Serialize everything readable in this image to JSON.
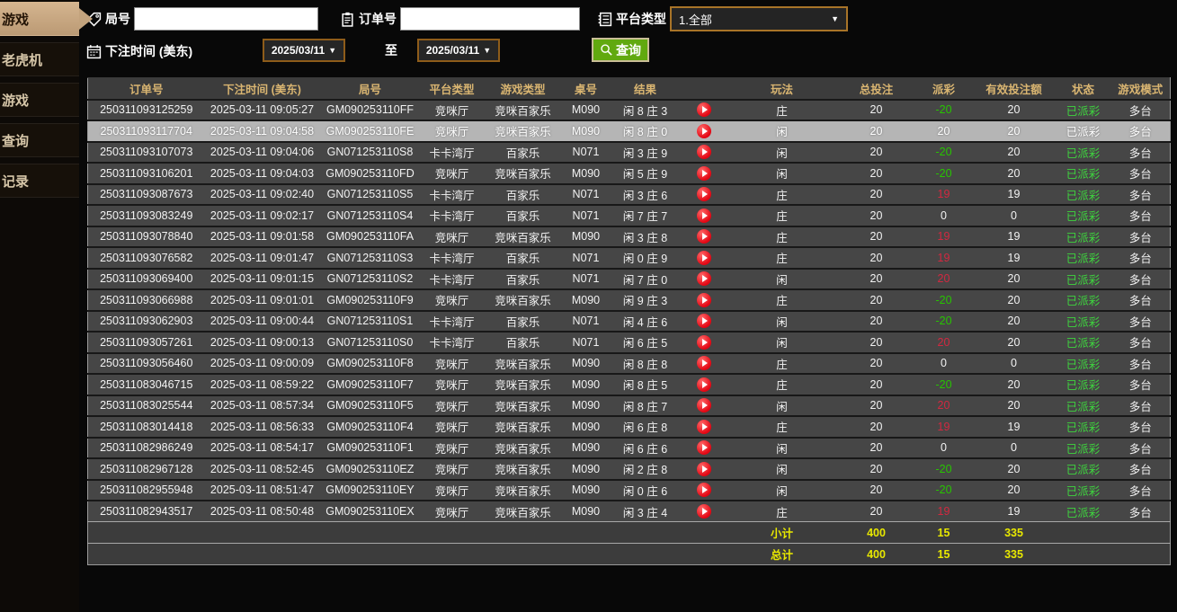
{
  "sidebar": {
    "items": [
      {
        "label": "游戏",
        "active": true
      },
      {
        "label": "老虎机",
        "active": false
      },
      {
        "label": "游戏",
        "active": false
      },
      {
        "label": "查询",
        "active": false
      },
      {
        "label": "记录",
        "active": false
      }
    ]
  },
  "filters": {
    "round_label": "局号",
    "order_label": "订单号",
    "platform_label": "平台类型",
    "platform_value": "1.全部",
    "bet_time_label": "下注时间 (美东)",
    "date_from": "2025/03/11",
    "to_label": "至",
    "date_to": "2025/03/11",
    "query_label": "查询",
    "round_value": "",
    "order_value": ""
  },
  "table": {
    "columns": [
      "订单号",
      "下注时间 (美东)",
      "局号",
      "平台类型",
      "游戏类型",
      "桌号",
      "结果",
      "",
      "玩法",
      "总投注",
      "派彩",
      "有效投注额",
      "状态",
      "游戏模式"
    ],
    "rows": [
      {
        "order": "250311093125259",
        "time": "2025-03-11 09:05:27",
        "round": "GM090253110FF",
        "platform": "竞咪厅",
        "game_type": "竞咪百家乐",
        "table_no": "M090",
        "result": "闲 8 庄 3",
        "bet": "庄",
        "total": "20",
        "payout": "-20",
        "payout_color": "neg",
        "valid": "20",
        "status": "已派彩",
        "mode": "多台",
        "selected": false
      },
      {
        "order": "250311093117704",
        "time": "2025-03-11 09:04:58",
        "round": "GM090253110FE",
        "platform": "竞咪厅",
        "game_type": "竞咪百家乐",
        "table_no": "M090",
        "result": "闲 8 庄 0",
        "bet": "闲",
        "total": "20",
        "payout": "20",
        "payout_color": "pos",
        "valid": "20",
        "status": "已派彩",
        "mode": "多台",
        "selected": true
      },
      {
        "order": "250311093107073",
        "time": "2025-03-11 09:04:06",
        "round": "GN071253110S8",
        "platform": "卡卡湾厅",
        "game_type": "百家乐",
        "table_no": "N071",
        "result": "闲 3 庄 9",
        "bet": "闲",
        "total": "20",
        "payout": "-20",
        "payout_color": "neg",
        "valid": "20",
        "status": "已派彩",
        "mode": "多台",
        "selected": false
      },
      {
        "order": "250311093106201",
        "time": "2025-03-11 09:04:03",
        "round": "GM090253110FD",
        "platform": "竞咪厅",
        "game_type": "竞咪百家乐",
        "table_no": "M090",
        "result": "闲 5 庄 9",
        "bet": "闲",
        "total": "20",
        "payout": "-20",
        "payout_color": "neg",
        "valid": "20",
        "status": "已派彩",
        "mode": "多台",
        "selected": false
      },
      {
        "order": "250311093087673",
        "time": "2025-03-11 09:02:40",
        "round": "GN071253110S5",
        "platform": "卡卡湾厅",
        "game_type": "百家乐",
        "table_no": "N071",
        "result": "闲 3 庄 6",
        "bet": "庄",
        "total": "20",
        "payout": "19",
        "payout_color": "pos",
        "valid": "19",
        "status": "已派彩",
        "mode": "多台",
        "selected": false
      },
      {
        "order": "250311093083249",
        "time": "2025-03-11 09:02:17",
        "round": "GN071253110S4",
        "platform": "卡卡湾厅",
        "game_type": "百家乐",
        "table_no": "N071",
        "result": "闲 7 庄 7",
        "bet": "庄",
        "total": "20",
        "payout": "0",
        "payout_color": "zero",
        "valid": "0",
        "status": "已派彩",
        "mode": "多台",
        "selected": false
      },
      {
        "order": "250311093078840",
        "time": "2025-03-11 09:01:58",
        "round": "GM090253110FA",
        "platform": "竞咪厅",
        "game_type": "竞咪百家乐",
        "table_no": "M090",
        "result": "闲 3 庄 8",
        "bet": "庄",
        "total": "20",
        "payout": "19",
        "payout_color": "pos",
        "valid": "19",
        "status": "已派彩",
        "mode": "多台",
        "selected": false
      },
      {
        "order": "250311093076582",
        "time": "2025-03-11 09:01:47",
        "round": "GN071253110S3",
        "platform": "卡卡湾厅",
        "game_type": "百家乐",
        "table_no": "N071",
        "result": "闲 0 庄 9",
        "bet": "庄",
        "total": "20",
        "payout": "19",
        "payout_color": "pos",
        "valid": "19",
        "status": "已派彩",
        "mode": "多台",
        "selected": false
      },
      {
        "order": "250311093069400",
        "time": "2025-03-11 09:01:15",
        "round": "GN071253110S2",
        "platform": "卡卡湾厅",
        "game_type": "百家乐",
        "table_no": "N071",
        "result": "闲 7 庄 0",
        "bet": "闲",
        "total": "20",
        "payout": "20",
        "payout_color": "pos",
        "valid": "20",
        "status": "已派彩",
        "mode": "多台",
        "selected": false
      },
      {
        "order": "250311093066988",
        "time": "2025-03-11 09:01:01",
        "round": "GM090253110F9",
        "platform": "竞咪厅",
        "game_type": "竞咪百家乐",
        "table_no": "M090",
        "result": "闲 9 庄 3",
        "bet": "庄",
        "total": "20",
        "payout": "-20",
        "payout_color": "neg",
        "valid": "20",
        "status": "已派彩",
        "mode": "多台",
        "selected": false
      },
      {
        "order": "250311093062903",
        "time": "2025-03-11 09:00:44",
        "round": "GN071253110S1",
        "platform": "卡卡湾厅",
        "game_type": "百家乐",
        "table_no": "N071",
        "result": "闲 4 庄 6",
        "bet": "闲",
        "total": "20",
        "payout": "-20",
        "payout_color": "neg",
        "valid": "20",
        "status": "已派彩",
        "mode": "多台",
        "selected": false
      },
      {
        "order": "250311093057261",
        "time": "2025-03-11 09:00:13",
        "round": "GN071253110S0",
        "platform": "卡卡湾厅",
        "game_type": "百家乐",
        "table_no": "N071",
        "result": "闲 6 庄 5",
        "bet": "闲",
        "total": "20",
        "payout": "20",
        "payout_color": "pos",
        "valid": "20",
        "status": "已派彩",
        "mode": "多台",
        "selected": false
      },
      {
        "order": "250311093056460",
        "time": "2025-03-11 09:00:09",
        "round": "GM090253110F8",
        "platform": "竞咪厅",
        "game_type": "竞咪百家乐",
        "table_no": "M090",
        "result": "闲 8 庄 8",
        "bet": "庄",
        "total": "20",
        "payout": "0",
        "payout_color": "zero",
        "valid": "0",
        "status": "已派彩",
        "mode": "多台",
        "selected": false
      },
      {
        "order": "250311083046715",
        "time": "2025-03-11 08:59:22",
        "round": "GM090253110F7",
        "platform": "竞咪厅",
        "game_type": "竞咪百家乐",
        "table_no": "M090",
        "result": "闲 8 庄 5",
        "bet": "庄",
        "total": "20",
        "payout": "-20",
        "payout_color": "neg",
        "valid": "20",
        "status": "已派彩",
        "mode": "多台",
        "selected": false
      },
      {
        "order": "250311083025544",
        "time": "2025-03-11 08:57:34",
        "round": "GM090253110F5",
        "platform": "竞咪厅",
        "game_type": "竞咪百家乐",
        "table_no": "M090",
        "result": "闲 8 庄 7",
        "bet": "闲",
        "total": "20",
        "payout": "20",
        "payout_color": "pos",
        "valid": "20",
        "status": "已派彩",
        "mode": "多台",
        "selected": false
      },
      {
        "order": "250311083014418",
        "time": "2025-03-11 08:56:33",
        "round": "GM090253110F4",
        "platform": "竞咪厅",
        "game_type": "竞咪百家乐",
        "table_no": "M090",
        "result": "闲 6 庄 8",
        "bet": "庄",
        "total": "20",
        "payout": "19",
        "payout_color": "pos",
        "valid": "19",
        "status": "已派彩",
        "mode": "多台",
        "selected": false
      },
      {
        "order": "250311082986249",
        "time": "2025-03-11 08:54:17",
        "round": "GM090253110F1",
        "platform": "竞咪厅",
        "game_type": "竞咪百家乐",
        "table_no": "M090",
        "result": "闲 6 庄 6",
        "bet": "闲",
        "total": "20",
        "payout": "0",
        "payout_color": "zero",
        "valid": "0",
        "status": "已派彩",
        "mode": "多台",
        "selected": false
      },
      {
        "order": "250311082967128",
        "time": "2025-03-11 08:52:45",
        "round": "GM090253110EZ",
        "platform": "竞咪厅",
        "game_type": "竞咪百家乐",
        "table_no": "M090",
        "result": "闲 2 庄 8",
        "bet": "闲",
        "total": "20",
        "payout": "-20",
        "payout_color": "neg",
        "valid": "20",
        "status": "已派彩",
        "mode": "多台",
        "selected": false
      },
      {
        "order": "250311082955948",
        "time": "2025-03-11 08:51:47",
        "round": "GM090253110EY",
        "platform": "竞咪厅",
        "game_type": "竞咪百家乐",
        "table_no": "M090",
        "result": "闲 0 庄 6",
        "bet": "闲",
        "total": "20",
        "payout": "-20",
        "payout_color": "neg",
        "valid": "20",
        "status": "已派彩",
        "mode": "多台",
        "selected": false
      },
      {
        "order": "250311082943517",
        "time": "2025-03-11 08:50:48",
        "round": "GM090253110EX",
        "platform": "竞咪厅",
        "game_type": "竞咪百家乐",
        "table_no": "M090",
        "result": "闲 3 庄 4",
        "bet": "庄",
        "total": "20",
        "payout": "19",
        "payout_color": "pos",
        "valid": "19",
        "status": "已派彩",
        "mode": "多台",
        "selected": false
      }
    ],
    "footer": [
      {
        "label": "小计",
        "total": "400",
        "payout": "15",
        "valid": "335"
      },
      {
        "label": "总计",
        "total": "400",
        "payout": "15",
        "valid": "335"
      }
    ]
  },
  "colors": {
    "accent_gold": "#d9b571",
    "active_tab_bg": "#c9a882",
    "payout_positive_red": "#d22840",
    "payout_negative_green": "#27c400",
    "status_paid_green": "#3ed43e",
    "totals_yellow": "#e8e800",
    "query_button_green": "#61a90f",
    "selected_row_bg": "#b5b5b5",
    "play_icon_red": "#e30613"
  }
}
